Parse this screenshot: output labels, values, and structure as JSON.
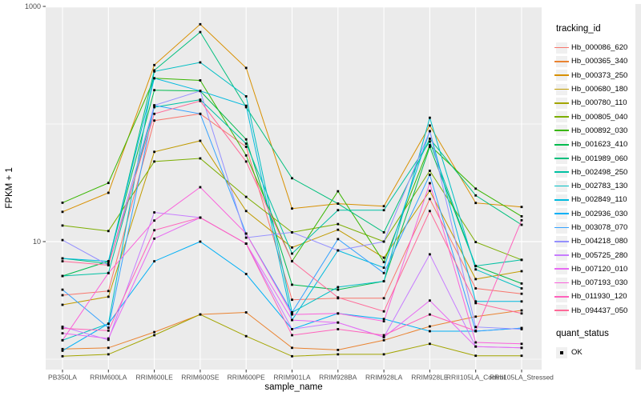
{
  "chart_data": {
    "type": "line",
    "title": "",
    "xlabel": "sample_name",
    "ylabel": "FPKM + 1",
    "y_scale": "log10",
    "ylim": [
      1,
      1000
    ],
    "grid": true,
    "panel_bg": "#ebebeb",
    "grid_color": "#ffffff",
    "point_color": "#000000",
    "point_marker": "square",
    "axis_text_color": "#4d4d4d",
    "y_ticks": [
      {
        "label": "1000",
        "value": 1000
      },
      {
        "label": "10",
        "value": 10
      }
    ],
    "y_minor_values": [
      100,
      1
    ],
    "categories": [
      "PB350LA",
      "RRIM600LA",
      "RRIM600LE",
      "RRIM600SE",
      "RRIM600PE",
      "RRIM901LA",
      "RRIM928BA",
      "RRIM928LA",
      "RRIM928LE",
      "RRII105LA_Control",
      "RRII105LA_Stressed"
    ],
    "legend": {
      "title": "tracking_id",
      "position": "right"
    },
    "legend2": {
      "title": "quant_status",
      "items": [
        {
          "label": "OK",
          "marker": "black-square"
        }
      ]
    },
    "series": [
      {
        "name": "Hb_000086_620",
        "color": "#F8766D",
        "values": [
          3.5,
          3.8,
          107,
          122,
          64,
          3.2,
          3.3,
          3.3,
          23,
          4.0,
          3.6
        ]
      },
      {
        "name": "Hb_000365_340",
        "color": "#EA8331",
        "values": [
          1.22,
          1.25,
          1.7,
          2.4,
          2.5,
          1.25,
          1.2,
          1.45,
          1.9,
          2.3,
          2.6
        ]
      },
      {
        "name": "Hb_000373_250",
        "color": "#D89000",
        "values": [
          17.9,
          26,
          317,
          705,
          300,
          19.1,
          21,
          20,
          97,
          21.3,
          19.7
        ]
      },
      {
        "name": "Hb_000680_180",
        "color": "#C09B00",
        "values": [
          2.9,
          3.4,
          58,
          72,
          18.2,
          8.9,
          12.6,
          7.3,
          27,
          4.8,
          5.6
        ]
      },
      {
        "name": "Hb_000780_110",
        "color": "#A3A500",
        "values": [
          1.06,
          1.1,
          1.6,
          2.4,
          1.57,
          1.06,
          1.1,
          1.1,
          1.35,
          1.07,
          1.07
        ]
      },
      {
        "name": "Hb_000805_040",
        "color": "#7CAE00",
        "values": [
          13.7,
          12.3,
          48,
          51,
          24,
          12.0,
          14.1,
          10,
          40,
          9.9,
          7.0
        ]
      },
      {
        "name": "Hb_000892_030",
        "color": "#39B600",
        "values": [
          21.4,
          31.5,
          245,
          235,
          54,
          6.8,
          26.8,
          6.7,
          66,
          28.2,
          16.4
        ]
      },
      {
        "name": "Hb_001623_410",
        "color": "#00BB4E",
        "values": [
          5.1,
          6.8,
          194,
          191,
          74,
          4.3,
          3.9,
          4.6,
          64,
          6.2,
          4.4
        ]
      },
      {
        "name": "Hb_001989_060",
        "color": "#00BF7D",
        "values": [
          7.2,
          6.5,
          286,
          605,
          139,
          34.6,
          21,
          12.0,
          75,
          24.7,
          13.9
        ]
      },
      {
        "name": "Hb_002498_250",
        "color": "#00C1A3",
        "values": [
          5.1,
          5.4,
          139,
          161,
          68,
          7.9,
          18.5,
          18.5,
          71,
          6.2,
          7.0
        ]
      },
      {
        "name": "Hb_002783_130",
        "color": "#00BFC4",
        "values": [
          1.45,
          2.0,
          280,
          334,
          172,
          2.5,
          4.1,
          4.6,
          113,
          5.8,
          4.0
        ]
      },
      {
        "name": "Hb_002849_110",
        "color": "#00BADE",
        "values": [
          7.2,
          6.8,
          245,
          191,
          143,
          2.15,
          8.4,
          6.0,
          87,
          3.1,
          3.1
        ]
      },
      {
        "name": "Hb_002936_030",
        "color": "#00B0F6",
        "values": [
          1.18,
          2.0,
          6.8,
          10,
          5.3,
          1.8,
          2.45,
          2.2,
          1.73,
          1.73,
          1.84
        ]
      },
      {
        "name": "Hb_003078_070",
        "color": "#35A2FF",
        "values": [
          3.9,
          1.85,
          144,
          122,
          11.7,
          2.5,
          10.5,
          5.4,
          37,
          1.73,
          1.84
        ]
      },
      {
        "name": "Hb_004218_080",
        "color": "#9590FF",
        "values": [
          10.3,
          6.3,
          144,
          191,
          10.8,
          12.0,
          8.4,
          10,
          87,
          1.88,
          1.8
        ]
      },
      {
        "name": "Hb_005725_280",
        "color": "#C77CFF",
        "values": [
          1.89,
          1.46,
          17.7,
          16,
          9.6,
          1.8,
          2.05,
          1.54,
          7.8,
          1.28,
          1.25
        ]
      },
      {
        "name": "Hb_007120_010",
        "color": "#E76BF3",
        "values": [
          1.66,
          1.5,
          10.6,
          16,
          9.6,
          2.15,
          2.05,
          1.54,
          3.15,
          1.28,
          1.25
        ]
      },
      {
        "name": "Hb_007193_030",
        "color": "#FA62DB",
        "values": [
          1.45,
          5.4,
          15.1,
          29,
          11.7,
          2.4,
          2.45,
          2.1,
          31.4,
          1.39,
          1.35
        ]
      },
      {
        "name": "Hb_011930_120",
        "color": "#FF62BC",
        "values": [
          1.83,
          1.75,
          12.5,
          16,
          9.6,
          1.6,
          1.8,
          1.6,
          2.4,
          1.74,
          15.2
        ]
      },
      {
        "name": "Hb_094437_050",
        "color": "#FF6A98",
        "values": [
          6.8,
          6.3,
          122,
          157,
          48,
          6.8,
          3.35,
          2.55,
          18.2,
          3.0,
          2.45
        ]
      }
    ]
  }
}
